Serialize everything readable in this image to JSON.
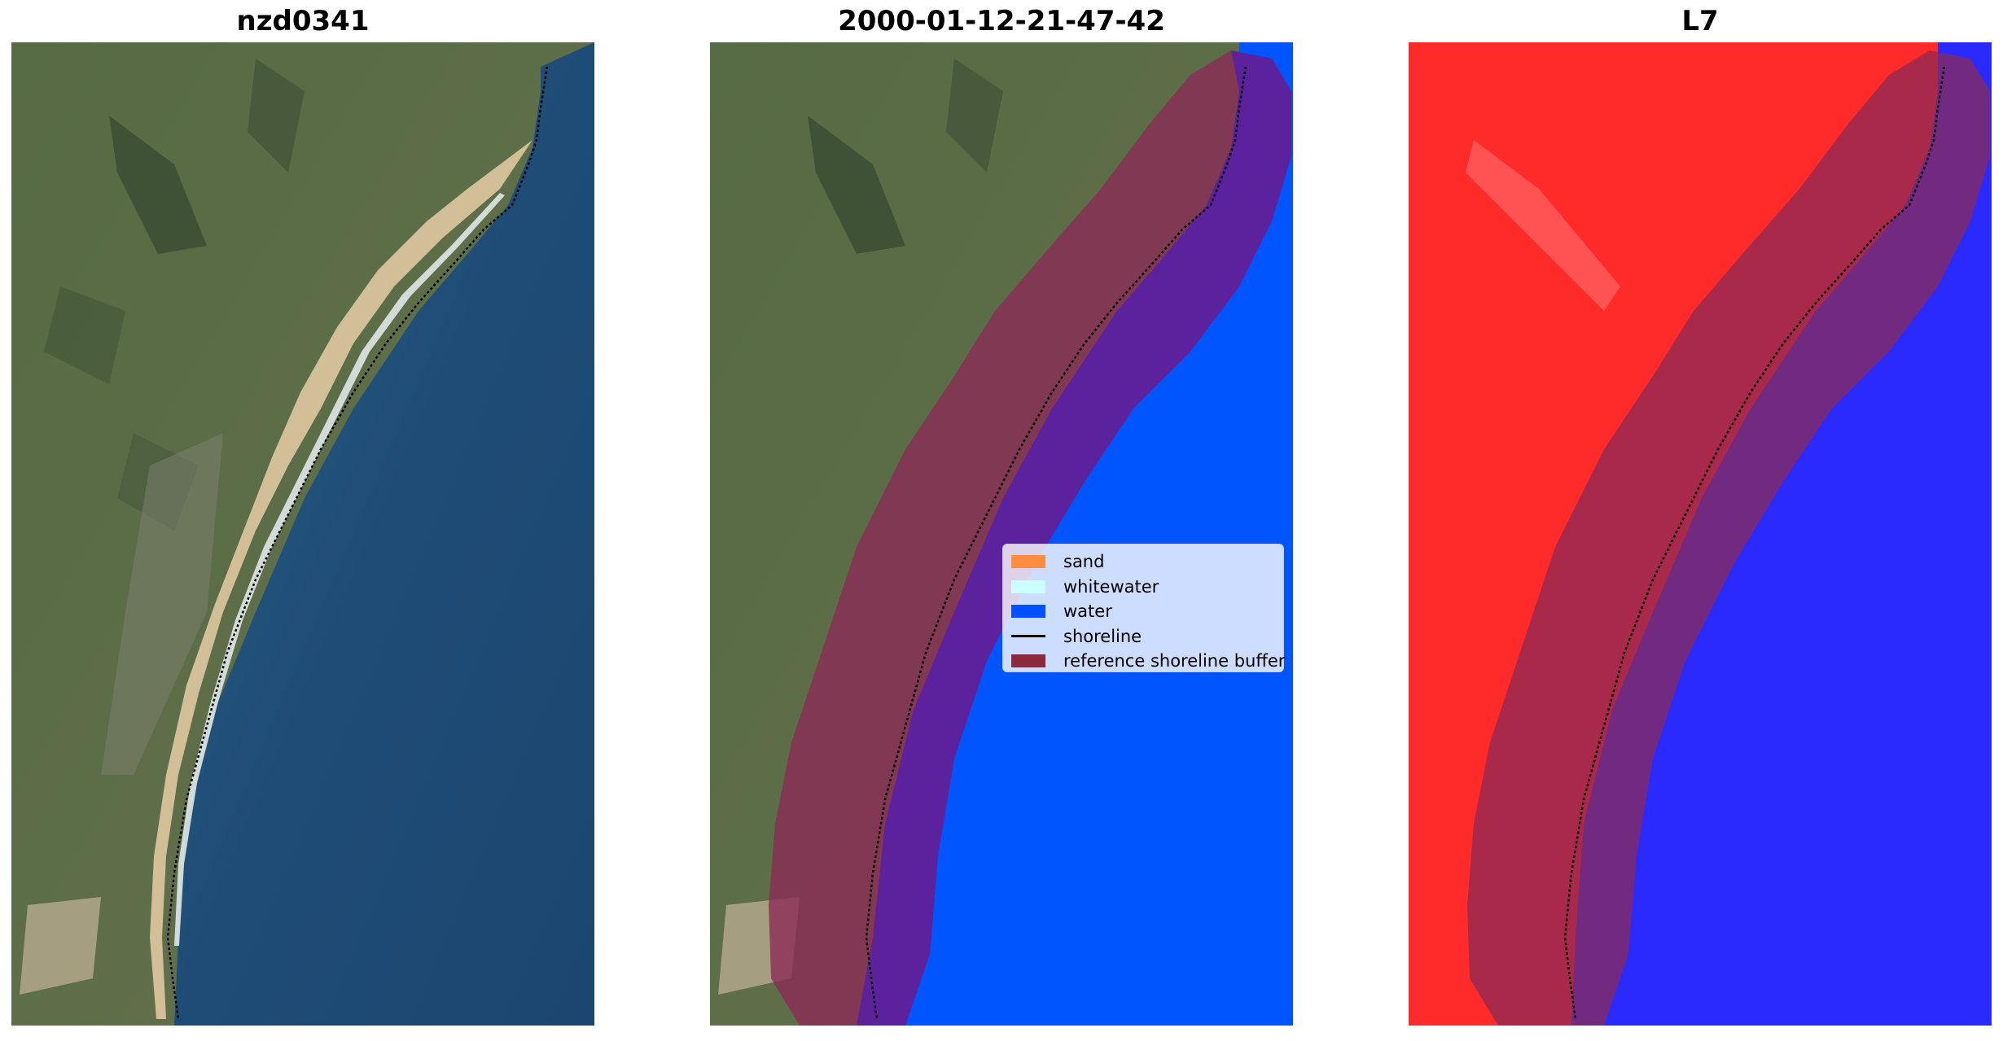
{
  "panels": [
    {
      "title": "nzd0341",
      "kind": "rgb"
    },
    {
      "title": "2000-01-12-21-47-42",
      "kind": "classified"
    },
    {
      "title": "L7",
      "kind": "index"
    }
  ],
  "legend": {
    "items": [
      {
        "label": "sand",
        "color": "#ff8c3f",
        "type": "patch"
      },
      {
        "label": "whitewater",
        "color": "#ccffff",
        "type": "patch"
      },
      {
        "label": "water",
        "color": "#0050ff",
        "type": "patch"
      },
      {
        "label": "shoreline",
        "color": "#000000",
        "type": "line"
      },
      {
        "label": "reference shoreline buffer",
        "color": "#8b2a3e",
        "type": "patch"
      }
    ]
  },
  "colors": {
    "land": "#5b6d45",
    "ocean": "#1f4e78",
    "sand": "#d6c29a",
    "classified_water": "#0050ff",
    "buffer": "#8b2a3e",
    "index_land": "#ff2020",
    "index_water": "#2020ff"
  }
}
